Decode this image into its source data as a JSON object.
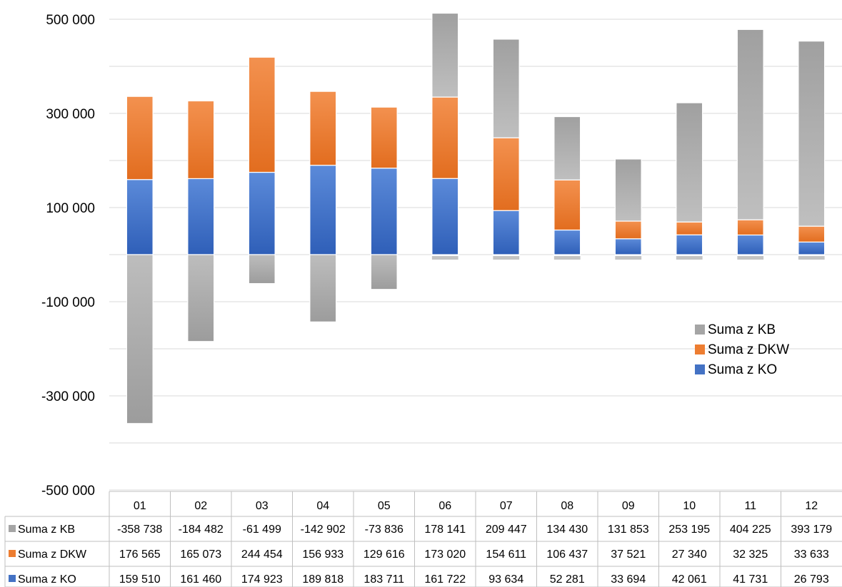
{
  "chart_data": {
    "type": "bar",
    "stacked": true,
    "categories": [
      "01",
      "02",
      "03",
      "04",
      "05",
      "06",
      "07",
      "08",
      "09",
      "10",
      "11",
      "12"
    ],
    "series": [
      {
        "name": "Suma z KO",
        "color": "#4472C4",
        "values": [
          159510,
          161460,
          174923,
          189818,
          183711,
          161722,
          93634,
          52281,
          33694,
          42061,
          41731,
          26793
        ],
        "labels": [
          "159 510",
          "161 460",
          "174 923",
          "189 818",
          "183 711",
          "161 722",
          "93 634",
          "52 281",
          "33 694",
          "42 061",
          "41 731",
          "26 793"
        ]
      },
      {
        "name": "Suma z DKW",
        "color": "#ED7D31",
        "values": [
          176565,
          165073,
          244454,
          156933,
          129616,
          173020,
          154611,
          106437,
          37521,
          27340,
          32325,
          33633
        ],
        "labels": [
          "176 565",
          "165 073",
          "244 454",
          "156 933",
          "129 616",
          "173 020",
          "154 611",
          "106 437",
          "37 521",
          "27 340",
          "32 325",
          "33 633"
        ]
      },
      {
        "name": "Suma z KB",
        "color": "#A5A5A5",
        "values": [
          -358738,
          -184482,
          -61499,
          -142902,
          -73836,
          178141,
          209447,
          134430,
          131853,
          253195,
          404225,
          393179
        ],
        "labels": [
          "-358 738",
          "-184 482",
          "-61 499",
          "-142 902",
          "-73 836",
          "178 141",
          "209 447",
          "134 430",
          "131 853",
          "253 195",
          "404 225",
          "393 179"
        ]
      }
    ],
    "table_rows_order": [
      "Suma z KB",
      "Suma z DKW",
      "Suma z KO"
    ],
    "legend_order": [
      "Suma z KB",
      "Suma z DKW",
      "Suma z KO"
    ],
    "ylim": [
      -500000,
      500000
    ],
    "yticks": [
      500000,
      300000,
      100000,
      -100000,
      -300000,
      -500000
    ],
    "ytick_labels": [
      "500 000",
      "300 000",
      "100 000",
      "-100 000",
      "-300 000",
      "-500 000"
    ],
    "grid": true,
    "legend_position": "right"
  }
}
